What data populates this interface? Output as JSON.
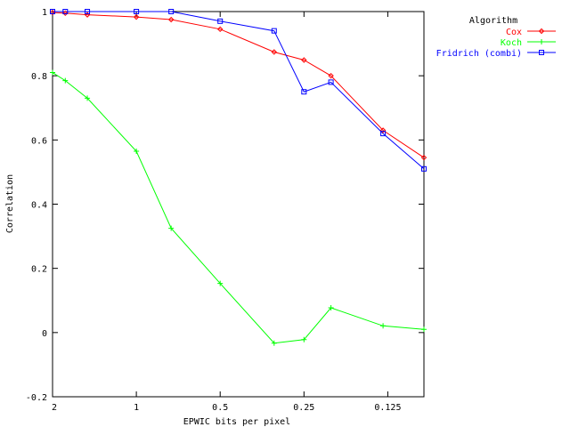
{
  "chart_data": {
    "type": "line",
    "xlabel": "EPWIC bits per pixel",
    "ylabel": "Correlation",
    "x_scale": "log2",
    "x_reversed": true,
    "xlim": [
      2,
      0.0927
    ],
    "ylim": [
      -0.2,
      1
    ],
    "x_ticks": [
      {
        "value": 2,
        "label": "2"
      },
      {
        "value": 1,
        "label": "1"
      },
      {
        "value": 0.5,
        "label": "0.5"
      },
      {
        "value": 0.25,
        "label": "0.25"
      },
      {
        "value": 0.125,
        "label": "0.125"
      }
    ],
    "y_ticks": [
      {
        "value": -0.2,
        "label": "-0.2"
      },
      {
        "value": 0,
        "label": "0"
      },
      {
        "value": 0.2,
        "label": "0.2"
      },
      {
        "value": 0.4,
        "label": "0.4"
      },
      {
        "value": 0.6,
        "label": "0.6"
      },
      {
        "value": 0.8,
        "label": "0.8"
      },
      {
        "value": 1,
        "label": "1"
      }
    ],
    "legend": {
      "title": "Algorithm",
      "position": "outside-top-right"
    },
    "series": [
      {
        "name": "Cox",
        "color": "#ff0000",
        "marker": "diamond",
        "points": [
          {
            "x": 2,
            "y": 0.997
          },
          {
            "x": 1.8,
            "y": 0.995
          },
          {
            "x": 1.5,
            "y": 0.99
          },
          {
            "x": 1.0,
            "y": 0.983
          },
          {
            "x": 0.75,
            "y": 0.975
          },
          {
            "x": 0.5,
            "y": 0.945
          },
          {
            "x": 0.32,
            "y": 0.874
          },
          {
            "x": 0.25,
            "y": 0.849
          },
          {
            "x": 0.2,
            "y": 0.8
          },
          {
            "x": 0.13,
            "y": 0.63
          },
          {
            "x": 0.0927,
            "y": 0.545
          }
        ]
      },
      {
        "name": "Koch",
        "color": "#00ff00",
        "marker": "plus",
        "points": [
          {
            "x": 2,
            "y": 0.81
          },
          {
            "x": 1.8,
            "y": 0.785
          },
          {
            "x": 1.5,
            "y": 0.73
          },
          {
            "x": 1.0,
            "y": 0.565
          },
          {
            "x": 0.75,
            "y": 0.325
          },
          {
            "x": 0.5,
            "y": 0.153
          },
          {
            "x": 0.32,
            "y": -0.033
          },
          {
            "x": 0.25,
            "y": -0.022
          },
          {
            "x": 0.2,
            "y": 0.077
          },
          {
            "x": 0.13,
            "y": 0.021
          },
          {
            "x": 0.0927,
            "y": 0.01
          }
        ]
      },
      {
        "name": "Fridrich (combi)",
        "color": "#0000ff",
        "marker": "square",
        "points": [
          {
            "x": 2,
            "y": 1.0
          },
          {
            "x": 1.8,
            "y": 1.0
          },
          {
            "x": 1.5,
            "y": 1.0
          },
          {
            "x": 1.0,
            "y": 1.0
          },
          {
            "x": 0.75,
            "y": 1.0
          },
          {
            "x": 0.5,
            "y": 0.97
          },
          {
            "x": 0.32,
            "y": 0.94
          },
          {
            "x": 0.25,
            "y": 0.75
          },
          {
            "x": 0.2,
            "y": 0.78
          },
          {
            "x": 0.13,
            "y": 0.62
          },
          {
            "x": 0.0927,
            "y": 0.51
          }
        ]
      }
    ]
  }
}
